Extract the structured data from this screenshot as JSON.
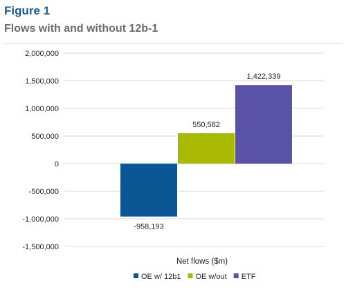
{
  "figure": {
    "label": "Figure 1",
    "title": "Flows with and without 12b-1"
  },
  "chart_data": {
    "type": "bar",
    "title": "Flows with and without 12b-1",
    "categories": [
      "Net flows ($m)"
    ],
    "xlabel": "Net flows ($m)",
    "ylabel": "",
    "ylim": [
      -1500000,
      2000000
    ],
    "yticks": [
      2000000,
      1500000,
      1000000,
      500000,
      0,
      -500000,
      -1000000,
      -1500000
    ],
    "ytick_labels": [
      "2,000,000",
      "1,500,000",
      "1,000,000",
      "500,000",
      "0",
      "-500,000",
      "-1,000,000",
      "-1,500,000"
    ],
    "grid": true,
    "legend": "bottom",
    "series": [
      {
        "name": "OE w/ 12b1",
        "values": [
          -958193
        ],
        "label": "-958,193",
        "color": "#0b5694"
      },
      {
        "name": "OE w/out",
        "values": [
          550582
        ],
        "label": "550,582",
        "color": "#a9b800"
      },
      {
        "name": "ETF",
        "values": [
          1422339
        ],
        "label": "1,422,339",
        "color": "#5a52a7"
      }
    ]
  }
}
